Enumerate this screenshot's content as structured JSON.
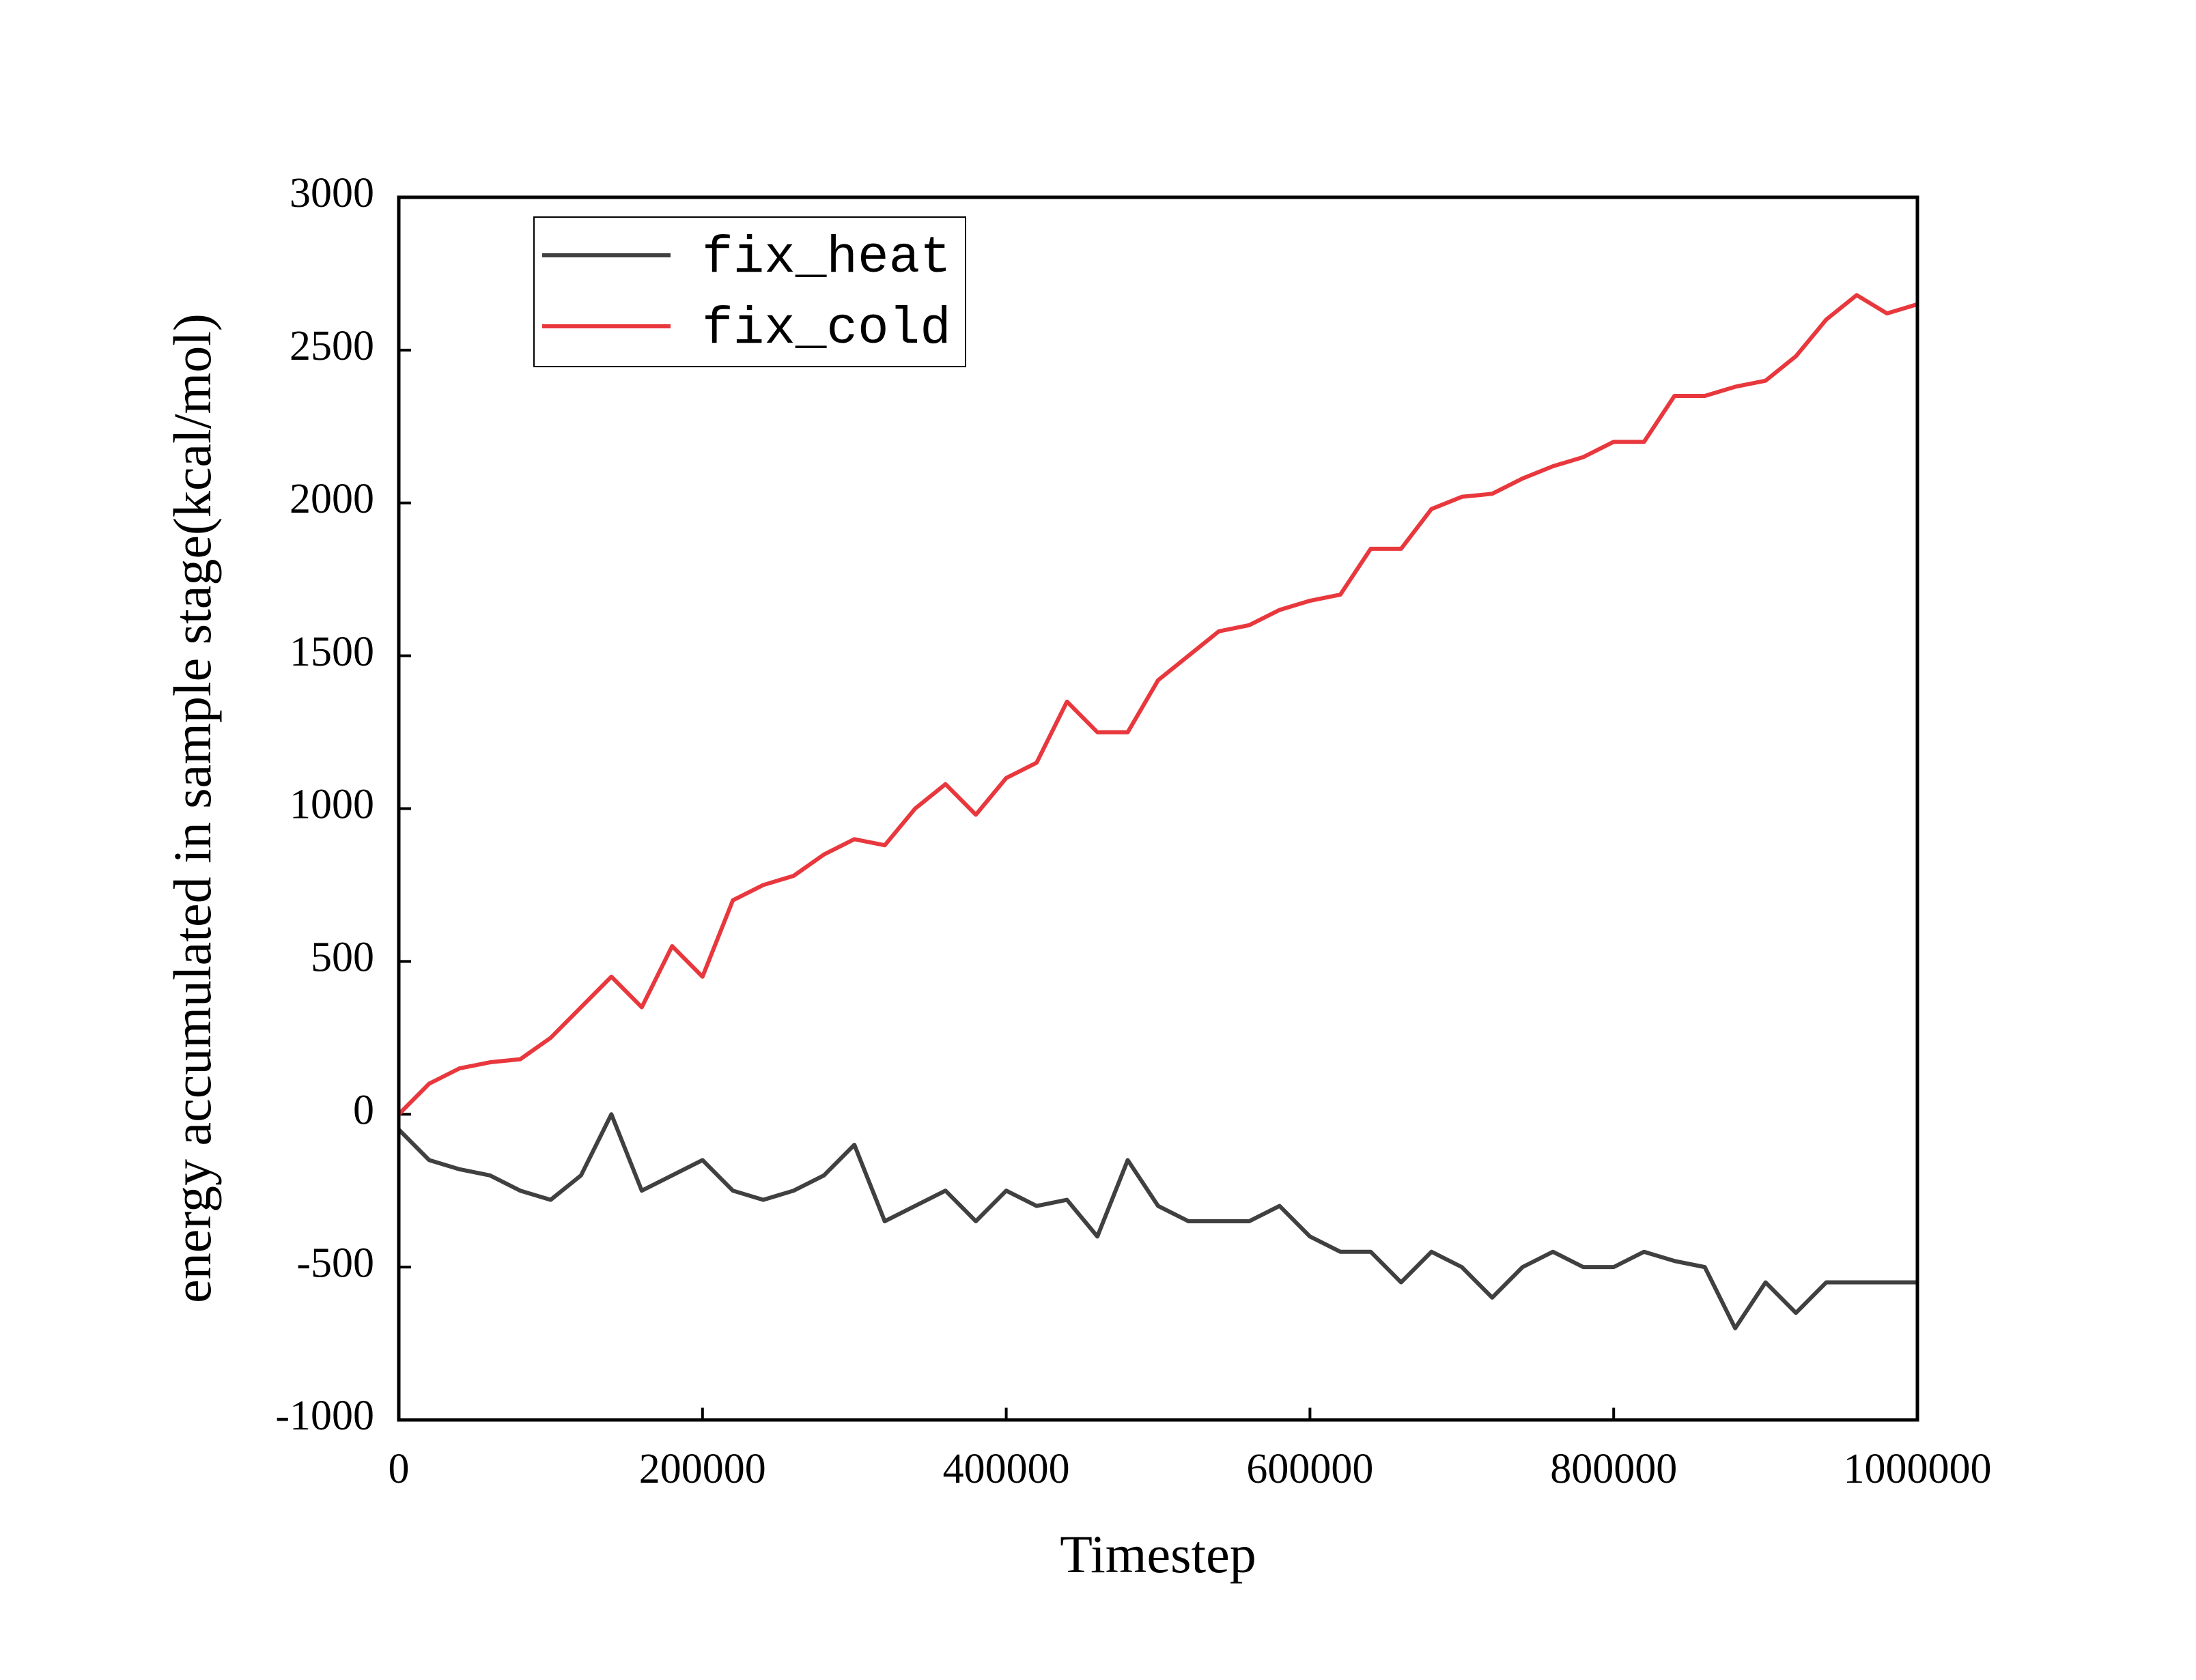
{
  "chart_data": {
    "type": "line",
    "x_label": "Timestep",
    "y_label": "energy accumulated in sample stage(kcal/mol)",
    "x": [
      0,
      20000,
      40000,
      60000,
      80000,
      100000,
      120000,
      140000,
      160000,
      180000,
      200000,
      220000,
      240000,
      260000,
      280000,
      300000,
      320000,
      340000,
      360000,
      380000,
      400000,
      420000,
      440000,
      460000,
      480000,
      500000,
      520000,
      540000,
      560000,
      580000,
      600000,
      620000,
      640000,
      660000,
      680000,
      700000,
      720000,
      740000,
      760000,
      780000,
      800000,
      820000,
      840000,
      860000,
      880000,
      900000,
      920000,
      940000,
      960000,
      980000,
      1000000
    ],
    "series": [
      {
        "name": "fix_heat",
        "color": "#404040",
        "values": [
          -50,
          -150,
          -180,
          -200,
          -250,
          -280,
          -200,
          0,
          -250,
          -200,
          -150,
          -250,
          -280,
          -250,
          -200,
          -100,
          -350,
          -300,
          -250,
          -350,
          -250,
          -300,
          -280,
          -400,
          -150,
          -300,
          -350,
          -350,
          -350,
          -300,
          -400,
          -450,
          -450,
          -550,
          -450,
          -500,
          -600,
          -500,
          -450,
          -500,
          -500,
          -450,
          -480,
          -500,
          -700,
          -550,
          -650,
          -550,
          -550,
          -550,
          -550
        ]
      },
      {
        "name": "fix_cold",
        "color": "#e8383d",
        "values": [
          0,
          100,
          150,
          170,
          180,
          250,
          350,
          450,
          350,
          550,
          450,
          700,
          750,
          780,
          850,
          900,
          880,
          1000,
          1080,
          980,
          1100,
          1150,
          1350,
          1250,
          1250,
          1420,
          1500,
          1580,
          1600,
          1650,
          1680,
          1700,
          1850,
          1850,
          1980,
          2020,
          2030,
          2080,
          2120,
          2150,
          2200,
          2200,
          2350,
          2350,
          2380,
          2400,
          2480,
          2600,
          2680,
          2620,
          2650
        ]
      }
    ],
    "xlim": [
      0,
      1000000
    ],
    "xticks": [
      0,
      200000,
      400000,
      600000,
      800000,
      1000000
    ],
    "ylim": [
      -1000,
      3000
    ],
    "yticks": [
      -1000,
      -500,
      0,
      500,
      1000,
      1500,
      2000,
      2500,
      3000
    ],
    "legend": "upper left"
  }
}
